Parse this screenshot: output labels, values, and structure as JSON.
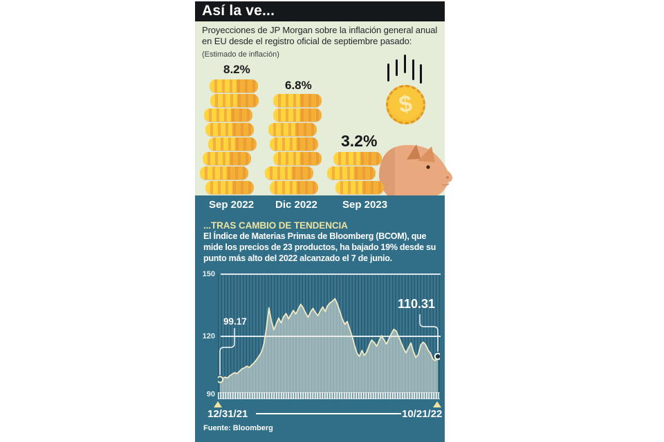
{
  "header": {
    "title": "Así la ve..."
  },
  "intro": {
    "paragraph_lines": [
      "Proyecciones de JP Morgan sobre la inflación general anual",
      "en EU desde el registro oficial de septiembre pasado:"
    ],
    "note": "(Estimado de inflación)"
  },
  "icons": {
    "dollar_symbol": "$"
  },
  "section2": {
    "heading": "...TRAS CAMBIO DE TENDENCIA",
    "body_lines": [
      "El Índice de Materias Primas de Bloomberg (BCOM), que",
      "mide los precios de 23 productos, ha bajado 19% desde su",
      "punto más alto del 2022 alcanzado el 7 de junio."
    ],
    "source": "Fuente: Bloomberg"
  },
  "colors": {
    "header_bg": "#14181b",
    "green_bg": "#e5ecd8",
    "teal_bg": "#316e88",
    "coin_yellow": "#ffd43d",
    "coin_orange": "#f3ae3d",
    "heading_yellow": "#ece3a1",
    "chart_line_cream": "#f2ebc4",
    "pig_body": "#e9a87d"
  },
  "chart_data": [
    {
      "type": "bar",
      "title": "Estimado de inflación (JP Morgan, EU)",
      "categories": [
        "Sep 2022",
        "Dic 2022",
        "Sep 2023"
      ],
      "values": [
        8.2,
        6.8,
        3.2
      ],
      "value_labels": [
        "8.2%",
        "6.8%",
        "3.2%"
      ],
      "coin_counts": [
        8,
        7,
        3
      ],
      "unit": "%"
    },
    {
      "type": "area",
      "title": "Índice de Materias Primas de Bloomberg (BCOM)",
      "ylim": [
        90,
        150
      ],
      "ytick_labels": [
        "150",
        "120",
        "90"
      ],
      "x_start_label": "12/31/21",
      "x_end_label": "10/21/22",
      "start_annotation": "99.17",
      "end_annotation": "110.31",
      "grid": true,
      "legend": false,
      "values": [
        99.17,
        99.6,
        100.3,
        99.9,
        101.0,
        101.8,
        102.5,
        102.0,
        103.2,
        104.3,
        104.8,
        105.6,
        105.0,
        106.2,
        107.3,
        108.8,
        110.5,
        112.5,
        116.5,
        124.0,
        133.8,
        127.5,
        123.2,
        126.0,
        128.8,
        126.5,
        129.5,
        131.0,
        128.5,
        130.5,
        132.5,
        130.8,
        133.2,
        135.5,
        133.8,
        131.2,
        129.2,
        131.8,
        133.5,
        131.5,
        130.0,
        132.3,
        134.2,
        132.0,
        134.8,
        136.2,
        137.0,
        138.2,
        135.5,
        132.0,
        128.3,
        125.8,
        127.2,
        123.5,
        120.0,
        115.5,
        111.8,
        110.3,
        113.2,
        110.8,
        112.5,
        115.8,
        118.2,
        117.0,
        115.2,
        117.8,
        120.3,
        118.4,
        116.3,
        118.8,
        121.2,
        123.4,
        122.6,
        119.8,
        117.0,
        114.2,
        112.0,
        114.5,
        116.8,
        112.8,
        109.8,
        111.2,
        115.8,
        117.2,
        116.0,
        113.5,
        111.8,
        109.0,
        108.3,
        110.31
      ]
    }
  ]
}
